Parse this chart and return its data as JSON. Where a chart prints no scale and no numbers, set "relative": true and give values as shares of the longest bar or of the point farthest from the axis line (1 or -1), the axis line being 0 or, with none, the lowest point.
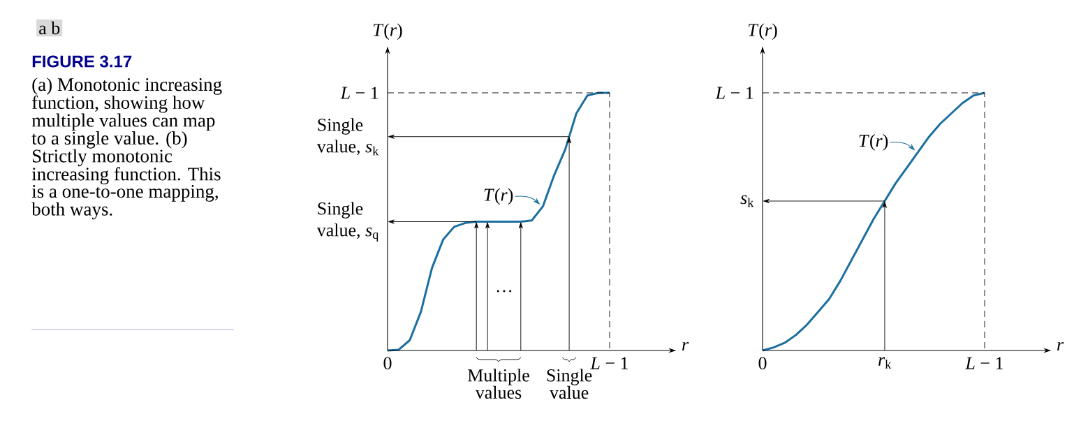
{
  "chart_data": [
    {
      "type": "line",
      "relative": true,
      "xlabel": "*r*",
      "ylabel": "*T*(*r*)",
      "annotations": [
        "a b",
        "FIGURE 3.17",
        "(a) Monotonic increasing function, showing how multiple values can map to a single value. (b) Strictly monotonic increasing function. This is a one-to-one mapping, both ways.",
        "…",
        "Multiple values",
        "Single value"
      ],
      "categories": [
        "0",
        null,
        null,
        null,
        null,
        null,
        null,
        null,
        null,
        null,
        null,
        null,
        null,
        null,
        null,
        null,
        null,
        null,
        null,
        null,
        "*L* − 1"
      ],
      "series": [
        {
          "name": "*T*(*r*)",
          "color": "#1b6fa0",
          "values": [
            0,
            0.003,
            0.04,
            0.15,
            0.32,
            0.43,
            0.48,
            0.495,
            0.5,
            0.5,
            0.5,
            0.5,
            0.5,
            0.505,
            0.56,
            0.68,
            0.78,
            0.92,
            0.99,
            1,
            1
          ]
        }
      ],
      "ref_lines": [
        {
          "axis": "y",
          "value": 1,
          "label": "*L* − 1",
          "line_style": "dashed"
        },
        {
          "axis": "y",
          "value": 0.83,
          "label": "Single value, *s*$_{k}$"
        },
        {
          "axis": "y",
          "value": 0.5,
          "label": "Single value, *s*$_{q}$"
        }
      ]
    },
    {
      "type": "line",
      "relative": true,
      "xlabel": "*r*",
      "ylabel": "*T*(*r*)",
      "categories": [
        "0",
        null,
        null,
        null,
        null,
        null,
        null,
        null,
        null,
        null,
        null,
        "*r*$_{k}$",
        null,
        null,
        null,
        null,
        null,
        null,
        null,
        null,
        "*L* − 1"
      ],
      "series": [
        {
          "name": "*T*(*r*)",
          "color": "#1b6fa0",
          "values": [
            0,
            0.012,
            0.03,
            0.06,
            0.1,
            0.15,
            0.2,
            0.27,
            0.35,
            0.43,
            0.51,
            0.58,
            0.65,
            0.71,
            0.77,
            0.83,
            0.88,
            0.92,
            0.96,
            0.99,
            1
          ]
        }
      ],
      "ref_lines": [
        {
          "axis": "y",
          "value": 1,
          "label": "*L* − 1",
          "line_style": "dashed"
        },
        {
          "axis": "y",
          "value": 0.58,
          "label": "*s*$_{k}$"
        }
      ]
    }
  ]
}
